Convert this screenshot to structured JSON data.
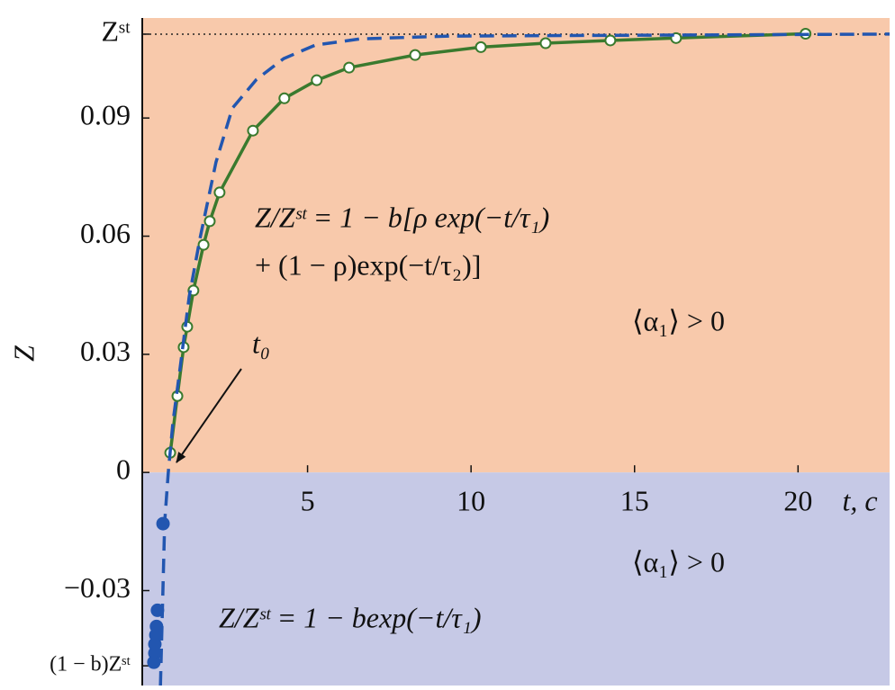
{
  "chart_data": {
    "type": "line",
    "xlabel": "t, c",
    "ylabel": "Z",
    "xlim": [
      0,
      22.8
    ],
    "ylim": [
      -0.0541,
      0.1154
    ],
    "xticks": [
      5,
      10,
      15,
      20
    ],
    "yticks": [
      {
        "value": -0.0491,
        "label": "(1 − b)Zˢᵗ"
      },
      {
        "value": -0.03,
        "label": "−0.03"
      },
      0,
      0.03,
      0.06,
      0.09,
      {
        "value": 0.1113,
        "label": "Zˢᵗ",
        "line": "dotted"
      }
    ],
    "region_colors": {
      "above_zero": "#f8c9ab",
      "below_zero": "#c6c9e6"
    },
    "annotations": [
      "Z/Zˢᵗ = 1 − b[ρ exp(−t/τ₁)",
      "+ (1 − ρ)exp(−t/τ₂)]",
      "⟨α₁⟩ > 0",
      "t₀",
      "⟨α₁⟩ > 0",
      "Z/Zˢᵗ = 1 − bexp(−t/τ₁)"
    ],
    "series": [
      {
        "color": "#3a7a2e",
        "line": "solid",
        "marker": "open-circle",
        "x": [
          0.8,
          1.02,
          1.21,
          1.32,
          1.51,
          1.82,
          2.01,
          2.31,
          3.33,
          4.29,
          5.28,
          6.27,
          8.29,
          10.3,
          12.28,
          14.26,
          16.27,
          20.23
        ],
        "values": [
          0.005,
          0.0194,
          0.0318,
          0.037,
          0.0462,
          0.0578,
          0.0638,
          0.0711,
          0.0868,
          0.095,
          0.0996,
          0.1028,
          0.106,
          0.108,
          0.109,
          0.1097,
          0.1103,
          0.1114
        ]
      },
      {
        "color": "#2256b0",
        "line": "dashed",
        "marker": "none",
        "x": [
          0.5,
          0.63,
          0.74,
          0.88,
          1.1,
          1.38,
          1.71,
          2.2,
          2.7,
          3.44,
          4.27,
          5.23,
          6.61,
          9.36,
          22.8
        ],
        "values": [
          -0.0541,
          -0.0126,
          0,
          0.0126,
          0.0263,
          0.0446,
          0.0594,
          0.0788,
          0.0925,
          0.0998,
          0.1051,
          0.1085,
          0.1101,
          0.1108,
          0.1113
        ]
      },
      {
        "color": "#2256b0",
        "line": "none",
        "marker": "filled-circle",
        "x": [
          0.58,
          0.41,
          0.38,
          0.36,
          0.33,
          0.33,
          0.3
        ],
        "values": [
          -0.013,
          -0.035,
          -0.0391,
          -0.0413,
          -0.0436,
          -0.0459,
          -0.0482
        ]
      }
    ]
  }
}
